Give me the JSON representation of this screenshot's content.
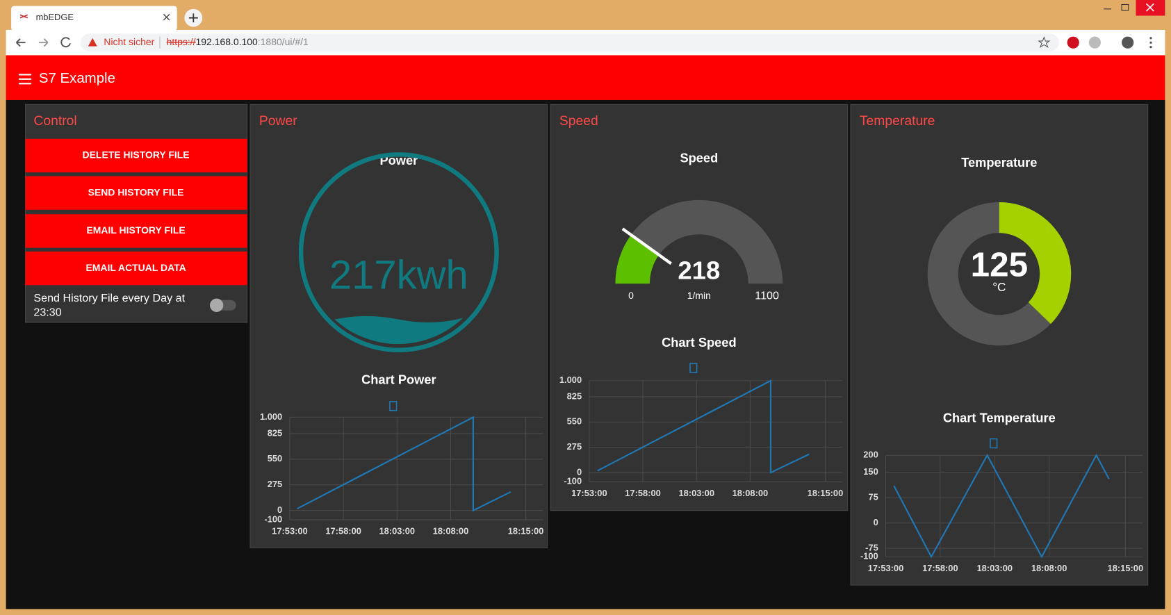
{
  "browser": {
    "tab_title": "mbEDGE",
    "security": "Nicht sicher",
    "url_scheme": "https://",
    "url_host": "192.168.0.100",
    "url_path": ":1880/ui/#/1"
  },
  "header": {
    "title": "S7 Example"
  },
  "control": {
    "title": "Control",
    "buttons": [
      "DELETE HISTORY FILE",
      "SEND HISTORY FILE",
      "EMAIL HISTORY FILE",
      "EMAIL ACTUAL DATA"
    ],
    "switch_label": "Send History File every Day at 23:30"
  },
  "power": {
    "title": "Power",
    "gauge": {
      "title": "Power",
      "value": 217,
      "unit": "kwh"
    },
    "chart": {
      "type": "line",
      "title": "Chart Power",
      "x": [
        "17:53:42",
        "18:10:06",
        "18:10:06",
        "18:13:36"
      ],
      "series": [
        {
          "color": "#1f77b4",
          "values": [
            20,
            1000,
            0,
            200
          ]
        }
      ],
      "xlim": [
        "17:53:00",
        "18:16:36"
      ],
      "xticks": [
        "17:53:00",
        "17:58:00",
        "18:03:00",
        "18:08:00",
        "18:15:00"
      ],
      "ylim": [
        -100,
        1000
      ],
      "yticks": [
        -100,
        0,
        275,
        550,
        825,
        {
          "value": 1000,
          "label": "1.000"
        }
      ],
      "grid": true
    }
  },
  "speed": {
    "title": "Speed",
    "gauge": {
      "title": "Speed",
      "value": 218,
      "unit": "1/min",
      "min": 0,
      "max": 1100
    },
    "chart": {
      "type": "line",
      "title": "Chart Speed",
      "x": [
        "17:53:46",
        "18:09:55",
        "18:09:55",
        "18:13:30"
      ],
      "series": [
        {
          "color": "#1f77b4",
          "values": [
            20,
            1000,
            0,
            200
          ]
        }
      ],
      "xlim": [
        "17:53:00",
        "18:16:36"
      ],
      "xticks": [
        "17:53:00",
        "17:58:00",
        "18:03:00",
        "18:08:00",
        "18:15:00"
      ],
      "ylim": [
        -100,
        1000
      ],
      "yticks": [
        -100,
        0,
        275,
        550,
        825,
        {
          "value": 1000,
          "label": "1.000"
        }
      ],
      "grid": true
    }
  },
  "temperature": {
    "title": "Temperature",
    "gauge": {
      "title": "Temperature",
      "value": 125,
      "unit": "°C"
    },
    "chart": {
      "type": "line",
      "title": "Chart Temperature",
      "x": [
        "17:53:45",
        "17:57:11",
        "18:02:19",
        "18:07:19",
        "18:12:20",
        "18:13:30"
      ],
      "series": [
        {
          "color": "#1f77b4",
          "values": [
            110,
            -100,
            200,
            -100,
            200,
            130
          ]
        }
      ],
      "xlim": [
        "17:53:00",
        "18:16:35"
      ],
      "xticks": [
        "17:53:00",
        "17:58:00",
        "18:03:00",
        "18:08:00",
        "18:15:00"
      ],
      "ylim": [
        -100,
        200
      ],
      "yticks": [
        -100,
        -75,
        0,
        75,
        150,
        200
      ],
      "grid": true
    }
  }
}
